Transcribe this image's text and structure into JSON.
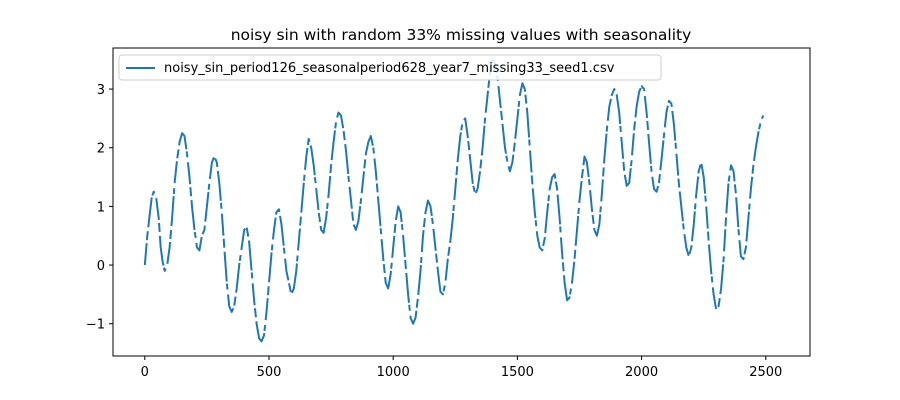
{
  "chart_data": {
    "type": "line",
    "title": "noisy sin with random 33% missing values with seasonality",
    "xlabel": "",
    "ylabel": "",
    "xlim": [
      -128,
      2678
    ],
    "ylim": [
      -1.55,
      3.7
    ],
    "xticks": [
      0,
      500,
      1000,
      1500,
      2000,
      2500
    ],
    "yticks": [
      -1,
      0,
      1,
      2,
      3
    ],
    "grid": false,
    "legend_position": "top-left",
    "series": [
      {
        "name": "noisy_sin_period126_seasonalperiod628_year7_missing33_seed1.csv",
        "color": "#1f77b4",
        "points": [
          [
            0,
            0.0
          ],
          [
            10,
            0.5
          ],
          [
            18,
            0.8
          ],
          [
            28,
            1.15
          ],
          [
            36,
            1.25
          ],
          [
            46,
            1.15
          ],
          [
            56,
            0.8
          ],
          [
            64,
            0.3
          ],
          [
            72,
            0.05
          ],
          [
            80,
            -0.1
          ],
          [
            90,
            0.0
          ],
          [
            100,
            0.3
          ],
          [
            110,
            0.8
          ],
          [
            120,
            1.4
          ],
          [
            130,
            1.8
          ],
          [
            140,
            2.1
          ],
          [
            150,
            2.25
          ],
          [
            160,
            2.2
          ],
          [
            170,
            1.9
          ],
          [
            180,
            1.5
          ],
          [
            190,
            1.0
          ],
          [
            200,
            0.6
          ],
          [
            210,
            0.3
          ],
          [
            220,
            0.25
          ],
          [
            230,
            0.5
          ],
          [
            240,
            0.6
          ],
          [
            250,
            1.0
          ],
          [
            260,
            1.4
          ],
          [
            270,
            1.75
          ],
          [
            280,
            1.85
          ],
          [
            290,
            1.75
          ],
          [
            300,
            1.4
          ],
          [
            310,
            0.9
          ],
          [
            320,
            0.3
          ],
          [
            330,
            -0.3
          ],
          [
            340,
            -0.7
          ],
          [
            350,
            -0.8
          ],
          [
            360,
            -0.7
          ],
          [
            370,
            -0.4
          ],
          [
            380,
            0.0
          ],
          [
            390,
            0.3
          ],
          [
            400,
            0.6
          ],
          [
            410,
            0.65
          ],
          [
            420,
            0.4
          ],
          [
            430,
            -0.1
          ],
          [
            440,
            -0.6
          ],
          [
            450,
            -1.0
          ],
          [
            460,
            -1.25
          ],
          [
            470,
            -1.3
          ],
          [
            480,
            -1.2
          ],
          [
            490,
            -0.8
          ],
          [
            500,
            -0.3
          ],
          [
            510,
            0.2
          ],
          [
            520,
            0.6
          ],
          [
            530,
            0.9
          ],
          [
            540,
            0.95
          ],
          [
            550,
            0.7
          ],
          [
            560,
            0.3
          ],
          [
            570,
            -0.1
          ],
          [
            580,
            -0.3
          ],
          [
            590,
            -0.5
          ],
          [
            600,
            -0.4
          ],
          [
            610,
            -0.1
          ],
          [
            620,
            0.4
          ],
          [
            630,
            0.9
          ],
          [
            640,
            1.4
          ],
          [
            650,
            1.85
          ],
          [
            660,
            2.15
          ],
          [
            670,
            2.0
          ],
          [
            680,
            1.7
          ],
          [
            690,
            1.3
          ],
          [
            700,
            0.9
          ],
          [
            710,
            0.6
          ],
          [
            720,
            0.55
          ],
          [
            730,
            0.8
          ],
          [
            740,
            1.2
          ],
          [
            750,
            1.7
          ],
          [
            760,
            2.1
          ],
          [
            770,
            2.45
          ],
          [
            780,
            2.6
          ],
          [
            790,
            2.55
          ],
          [
            800,
            2.3
          ],
          [
            810,
            1.95
          ],
          [
            820,
            1.5
          ],
          [
            830,
            1.1
          ],
          [
            840,
            0.7
          ],
          [
            850,
            0.6
          ],
          [
            860,
            0.75
          ],
          [
            870,
            1.1
          ],
          [
            880,
            1.5
          ],
          [
            890,
            1.9
          ],
          [
            900,
            2.1
          ],
          [
            910,
            2.2
          ],
          [
            920,
            2.0
          ],
          [
            930,
            1.6
          ],
          [
            940,
            1.1
          ],
          [
            950,
            0.6
          ],
          [
            960,
            0.1
          ],
          [
            970,
            -0.3
          ],
          [
            980,
            -0.4
          ],
          [
            990,
            -0.15
          ],
          [
            1000,
            0.3
          ],
          [
            1010,
            0.75
          ],
          [
            1020,
            1.0
          ],
          [
            1030,
            0.9
          ],
          [
            1040,
            0.5
          ],
          [
            1050,
            0.0
          ],
          [
            1060,
            -0.5
          ],
          [
            1070,
            -0.9
          ],
          [
            1080,
            -1.0
          ],
          [
            1090,
            -0.9
          ],
          [
            1100,
            -0.55
          ],
          [
            1110,
            -0.1
          ],
          [
            1120,
            0.5
          ],
          [
            1130,
            0.9
          ],
          [
            1140,
            1.1
          ],
          [
            1150,
            1.0
          ],
          [
            1160,
            0.7
          ],
          [
            1170,
            0.3
          ],
          [
            1180,
            -0.1
          ],
          [
            1190,
            -0.45
          ],
          [
            1200,
            -0.5
          ],
          [
            1210,
            -0.3
          ],
          [
            1220,
            0.1
          ],
          [
            1230,
            0.4
          ],
          [
            1240,
            0.8
          ],
          [
            1250,
            1.3
          ],
          [
            1260,
            1.8
          ],
          [
            1270,
            2.2
          ],
          [
            1280,
            2.45
          ],
          [
            1290,
            2.5
          ],
          [
            1300,
            2.2
          ],
          [
            1310,
            1.8
          ],
          [
            1320,
            1.4
          ],
          [
            1330,
            1.2
          ],
          [
            1340,
            1.3
          ],
          [
            1350,
            1.6
          ],
          [
            1360,
            2.0
          ],
          [
            1370,
            2.5
          ],
          [
            1380,
            2.9
          ],
          [
            1390,
            3.3
          ],
          [
            1400,
            3.5
          ],
          [
            1410,
            3.45
          ],
          [
            1420,
            3.2
          ],
          [
            1430,
            2.8
          ],
          [
            1440,
            2.4
          ],
          [
            1450,
            2.0
          ],
          [
            1460,
            1.75
          ],
          [
            1470,
            1.6
          ],
          [
            1480,
            1.75
          ],
          [
            1490,
            2.1
          ],
          [
            1500,
            2.5
          ],
          [
            1510,
            2.9
          ],
          [
            1520,
            3.1
          ],
          [
            1530,
            3.0
          ],
          [
            1540,
            2.6
          ],
          [
            1550,
            2.0
          ],
          [
            1560,
            1.4
          ],
          [
            1570,
            0.9
          ],
          [
            1580,
            0.5
          ],
          [
            1590,
            0.3
          ],
          [
            1600,
            0.25
          ],
          [
            1610,
            0.45
          ],
          [
            1620,
            0.9
          ],
          [
            1630,
            1.3
          ],
          [
            1640,
            1.5
          ],
          [
            1650,
            1.55
          ],
          [
            1660,
            1.3
          ],
          [
            1670,
            0.8
          ],
          [
            1680,
            0.2
          ],
          [
            1690,
            -0.3
          ],
          [
            1700,
            -0.6
          ],
          [
            1710,
            -0.55
          ],
          [
            1720,
            -0.3
          ],
          [
            1730,
            0.1
          ],
          [
            1740,
            0.6
          ],
          [
            1750,
            1.1
          ],
          [
            1760,
            1.5
          ],
          [
            1770,
            1.85
          ],
          [
            1780,
            1.75
          ],
          [
            1790,
            1.4
          ],
          [
            1800,
            0.95
          ],
          [
            1810,
            0.6
          ],
          [
            1820,
            0.5
          ],
          [
            1830,
            0.7
          ],
          [
            1840,
            1.2
          ],
          [
            1850,
            1.8
          ],
          [
            1860,
            2.3
          ],
          [
            1870,
            2.7
          ],
          [
            1880,
            2.9
          ],
          [
            1890,
            3.0
          ],
          [
            1900,
            2.9
          ],
          [
            1910,
            2.6
          ],
          [
            1920,
            2.1
          ],
          [
            1930,
            1.6
          ],
          [
            1940,
            1.35
          ],
          [
            1950,
            1.4
          ],
          [
            1960,
            1.8
          ],
          [
            1970,
            2.3
          ],
          [
            1980,
            2.7
          ],
          [
            1990,
            2.95
          ],
          [
            2000,
            3.05
          ],
          [
            2010,
            3.0
          ],
          [
            2020,
            2.6
          ],
          [
            2030,
            2.1
          ],
          [
            2040,
            1.6
          ],
          [
            2050,
            1.3
          ],
          [
            2060,
            1.25
          ],
          [
            2070,
            1.4
          ],
          [
            2080,
            1.8
          ],
          [
            2090,
            2.2
          ],
          [
            2100,
            2.6
          ],
          [
            2110,
            2.8
          ],
          [
            2120,
            2.75
          ],
          [
            2130,
            2.4
          ],
          [
            2140,
            1.9
          ],
          [
            2150,
            1.4
          ],
          [
            2160,
            1.0
          ],
          [
            2170,
            0.6
          ],
          [
            2180,
            0.3
          ],
          [
            2190,
            0.15
          ],
          [
            2200,
            0.3
          ],
          [
            2210,
            0.7
          ],
          [
            2220,
            1.2
          ],
          [
            2230,
            1.6
          ],
          [
            2240,
            1.75
          ],
          [
            2250,
            1.5
          ],
          [
            2260,
            1.0
          ],
          [
            2270,
            0.4
          ],
          [
            2280,
            -0.1
          ],
          [
            2290,
            -0.5
          ],
          [
            2300,
            -0.75
          ],
          [
            2310,
            -0.7
          ],
          [
            2320,
            -0.4
          ],
          [
            2330,
            0.1
          ],
          [
            2340,
            0.8
          ],
          [
            2350,
            1.4
          ],
          [
            2360,
            1.7
          ],
          [
            2370,
            1.6
          ],
          [
            2380,
            1.2
          ],
          [
            2390,
            0.6
          ],
          [
            2400,
            0.15
          ],
          [
            2410,
            0.1
          ],
          [
            2420,
            0.3
          ],
          [
            2430,
            0.8
          ],
          [
            2440,
            1.3
          ],
          [
            2450,
            1.7
          ],
          [
            2460,
            2.0
          ],
          [
            2470,
            2.25
          ],
          [
            2480,
            2.45
          ],
          [
            2490,
            2.55
          ]
        ]
      }
    ]
  }
}
